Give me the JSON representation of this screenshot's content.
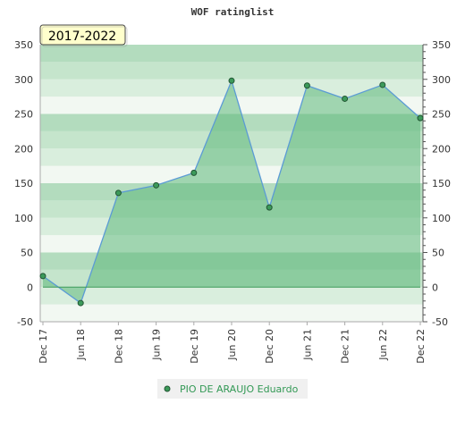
{
  "chart_data": {
    "type": "area",
    "title": "WOF ratinglist",
    "badge": "2017-2022",
    "categories": [
      "Dec 17",
      "Jun 18",
      "Dec 18",
      "Jun 19",
      "Dec 19",
      "Jun 20",
      "Dec 20",
      "Jun 21",
      "Dec 21",
      "Jun 22",
      "Dec 22"
    ],
    "series": [
      {
        "name": "PIO DE ARAUJO Eduardo",
        "values": [
          16,
          -23,
          136,
          147,
          165,
          298,
          115,
          291,
          272,
          292,
          244
        ]
      }
    ],
    "ylim": [
      -50,
      350
    ],
    "yticks": [
      -50,
      0,
      50,
      100,
      150,
      200,
      250,
      300,
      350
    ],
    "right_axis": true,
    "grid": "horizontal bands",
    "legend_position": "bottom-center",
    "colors": {
      "line": "#5b9bd5",
      "fill": "#5cb87a",
      "marker": "#3c9a5a",
      "badge_bg": "#ffffcc",
      "legend_text": "#339955"
    }
  }
}
